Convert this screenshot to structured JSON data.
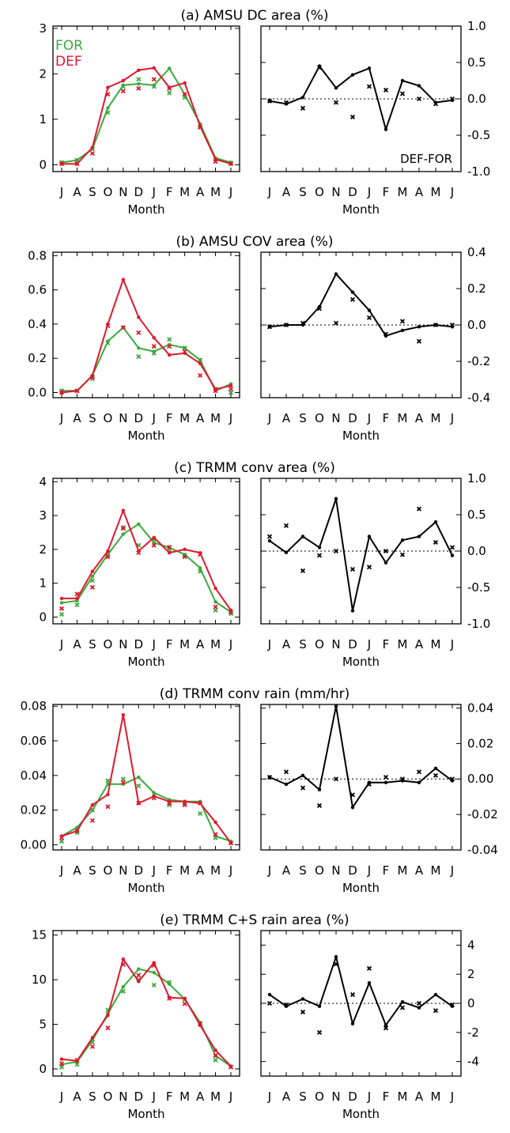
{
  "colors": {
    "FOR": "#3aaa3a",
    "DEF": "#e0182d",
    "DIFF": "#000000"
  },
  "legend": {
    "for_label": "FOR",
    "def_label": "DEF",
    "diff_label": "DEF-FOR"
  },
  "chart_data": [
    {
      "type": "line",
      "title": "(a) AMSU DC area (%)",
      "xlabel": "Month",
      "categories": [
        "J",
        "A",
        "S",
        "O",
        "N",
        "D",
        "J",
        "F",
        "M",
        "A",
        "M",
        "J"
      ],
      "left": {
        "ylim": [
          -0.15,
          3.05
        ],
        "yticks": [
          "0",
          "1",
          "2",
          "3"
        ],
        "ytick_values": [
          0,
          1,
          2,
          3
        ],
        "series": [
          {
            "name": "FOR",
            "line": [
              0.05,
              0.1,
              0.35,
              1.25,
              1.75,
              1.78,
              1.75,
              2.12,
              1.55,
              0.9,
              0.15,
              0.05
            ],
            "points": [
              0.05,
              0.1,
              0.35,
              1.15,
              1.72,
              1.88,
              1.72,
              1.58,
              1.48,
              0.85,
              0.12,
              0.04
            ]
          },
          {
            "name": "DEF",
            "line": [
              0.02,
              0.02,
              0.38,
              1.7,
              1.85,
              2.08,
              2.13,
              1.7,
              1.8,
              0.85,
              0.12,
              0.02
            ],
            "points": [
              0.02,
              0.02,
              0.25,
              1.55,
              1.62,
              1.68,
              1.88,
              1.68,
              1.55,
              0.82,
              0.07,
              0.02
            ]
          }
        ]
      },
      "right": {
        "ylim": [
          -1.0,
          1.0
        ],
        "yticks": [
          "1.0",
          "0.5",
          "0.0",
          "-0.5",
          "-1.0"
        ],
        "ytick_values": [
          1.0,
          0.5,
          0.0,
          -0.5,
          -1.0
        ],
        "series": [
          {
            "name": "DEF-FOR",
            "line": [
              -0.03,
              -0.07,
              0.02,
              0.45,
              0.15,
              0.33,
              0.42,
              -0.42,
              0.25,
              0.18,
              -0.05,
              -0.02
            ],
            "points": [
              -0.03,
              -0.05,
              -0.13,
              0.43,
              -0.05,
              -0.25,
              0.17,
              0.12,
              0.07,
              0.0,
              -0.07,
              0.0
            ]
          }
        ]
      }
    },
    {
      "type": "line",
      "title": "(b) AMSU COV area (%)",
      "xlabel": "Month",
      "categories": [
        "J",
        "A",
        "S",
        "O",
        "N",
        "D",
        "J",
        "F",
        "M",
        "A",
        "M",
        "J"
      ],
      "left": {
        "ylim": [
          -0.03,
          0.82
        ],
        "yticks": [
          "0.0",
          "0.2",
          "0.4",
          "0.6",
          "0.8"
        ],
        "ytick_values": [
          0.0,
          0.2,
          0.4,
          0.6,
          0.8
        ],
        "series": [
          {
            "name": "FOR",
            "line": [
              0.01,
              0.01,
              0.1,
              0.3,
              0.38,
              0.26,
              0.24,
              0.28,
              0.26,
              0.19,
              0.01,
              0.05
            ],
            "points": [
              0.01,
              0.01,
              0.08,
              0.29,
              0.38,
              0.21,
              0.23,
              0.31,
              0.26,
              0.19,
              0.02,
              0.0
            ]
          },
          {
            "name": "DEF",
            "line": [
              0.0,
              0.01,
              0.1,
              0.4,
              0.66,
              0.44,
              0.32,
              0.22,
              0.23,
              0.17,
              0.02,
              0.04
            ],
            "points": [
              0.0,
              0.01,
              0.09,
              0.39,
              0.38,
              0.35,
              0.27,
              0.27,
              0.24,
              0.1,
              0.01,
              0.02
            ]
          }
        ]
      },
      "right": {
        "ylim": [
          -0.4,
          0.4
        ],
        "yticks": [
          "0.4",
          "0.2",
          "0.0",
          "-0.2",
          "-0.4"
        ],
        "ytick_values": [
          0.4,
          0.2,
          0.0,
          -0.2,
          -0.4
        ],
        "series": [
          {
            "name": "DEF-FOR",
            "line": [
              -0.01,
              0.0,
              0.0,
              0.1,
              0.28,
              0.18,
              0.08,
              -0.06,
              -0.03,
              -0.01,
              0.0,
              -0.01
            ],
            "points": [
              -0.01,
              0.0,
              0.01,
              0.09,
              0.01,
              0.14,
              0.04,
              -0.05,
              0.02,
              -0.09,
              0.0,
              0.0
            ]
          }
        ]
      }
    },
    {
      "type": "line",
      "title": "(c) TRMM conv area (%)",
      "xlabel": "Month",
      "categories": [
        "J",
        "A",
        "S",
        "O",
        "N",
        "D",
        "J",
        "F",
        "M",
        "A",
        "M",
        "J"
      ],
      "left": {
        "ylim": [
          -0.2,
          4.1
        ],
        "yticks": [
          "0",
          "1",
          "2",
          "3",
          "4"
        ],
        "ytick_values": [
          0,
          1,
          2,
          3,
          4
        ],
        "series": [
          {
            "name": "FOR",
            "line": [
              0.42,
              0.48,
              1.2,
              1.85,
              2.45,
              2.75,
              2.2,
              2.05,
              1.85,
              1.45,
              0.45,
              0.15
            ],
            "points": [
              0.08,
              0.36,
              1.08,
              1.83,
              2.65,
              2.12,
              2.3,
              2.0,
              1.82,
              1.35,
              0.2,
              0.1
            ]
          },
          {
            "name": "DEF",
            "line": [
              0.55,
              0.55,
              1.35,
              1.95,
              3.15,
              1.95,
              2.35,
              1.9,
              2.0,
              1.9,
              0.85,
              0.2
            ],
            "points": [
              0.25,
              0.68,
              0.88,
              1.78,
              2.62,
              1.9,
              2.12,
              2.07,
              1.78,
              1.85,
              0.3,
              0.15
            ]
          }
        ]
      },
      "right": {
        "ylim": [
          -1.0,
          1.0
        ],
        "yticks": [
          "1.0",
          "0.5",
          "0.0",
          "-0.5",
          "-1.0"
        ],
        "ytick_values": [
          1.0,
          0.5,
          0.0,
          -0.5,
          -1.0
        ],
        "series": [
          {
            "name": "DEF-FOR",
            "line": [
              0.14,
              -0.02,
              0.2,
              0.05,
              0.72,
              -0.82,
              0.2,
              -0.16,
              0.15,
              0.2,
              0.4,
              -0.06
            ],
            "points": [
              0.2,
              0.35,
              -0.27,
              -0.06,
              0.0,
              -0.25,
              -0.22,
              0.0,
              -0.05,
              0.58,
              0.12,
              0.05
            ]
          }
        ]
      }
    },
    {
      "type": "line",
      "title": "(d) TRMM conv rain (mm/hr)",
      "xlabel": "Month",
      "categories": [
        "J",
        "A",
        "S",
        "O",
        "N",
        "D",
        "J",
        "F",
        "M",
        "A",
        "M",
        "J"
      ],
      "left": {
        "ylim": [
          -0.003,
          0.081
        ],
        "yticks": [
          "0.00",
          "0.02",
          "0.04",
          "0.06",
          "0.08"
        ],
        "ytick_values": [
          0.0,
          0.02,
          0.04,
          0.06,
          0.08
        ],
        "series": [
          {
            "name": "FOR",
            "line": [
              0.005,
              0.01,
              0.02,
              0.035,
              0.035,
              0.039,
              0.03,
              0.026,
              0.025,
              0.025,
              0.005,
              0.002
            ],
            "points": [
              0.002,
              0.007,
              0.02,
              0.037,
              0.038,
              0.034,
              0.029,
              0.023,
              0.024,
              0.018,
              0.004,
              0.001
            ]
          },
          {
            "name": "DEF",
            "line": [
              0.005,
              0.008,
              0.023,
              0.029,
              0.075,
              0.024,
              0.028,
              0.025,
              0.025,
              0.024,
              0.013,
              0.001
            ],
            "points": [
              0.004,
              0.008,
              0.014,
              0.022,
              0.036,
              0.024,
              0.027,
              0.024,
              0.023,
              0.024,
              0.006,
              0.001
            ]
          }
        ]
      },
      "right": {
        "ylim": [
          -0.04,
          0.042
        ],
        "yticks": [
          "0.04",
          "0.02",
          "0.00",
          "-0.02",
          "-0.04"
        ],
        "ytick_values": [
          0.04,
          0.02,
          0.0,
          -0.02,
          -0.04
        ],
        "series": [
          {
            "name": "DEF-FOR",
            "line": [
              0.001,
              -0.003,
              0.002,
              -0.006,
              0.041,
              -0.016,
              -0.002,
              -0.002,
              -0.001,
              -0.002,
              0.006,
              -0.001
            ],
            "points": [
              0.001,
              0.004,
              -0.005,
              -0.015,
              0.0,
              -0.009,
              -0.003,
              0.001,
              0.0,
              0.004,
              0.002,
              0.0
            ]
          }
        ]
      }
    },
    {
      "type": "line",
      "title": "(e) TRMM C+S rain area (%)",
      "xlabel": "Month",
      "categories": [
        "J",
        "A",
        "S",
        "O",
        "N",
        "D",
        "J",
        "F",
        "M",
        "A",
        "M",
        "J"
      ],
      "left": {
        "ylim": [
          -0.8,
          15.5
        ],
        "yticks": [
          "0",
          "5",
          "10",
          "15"
        ],
        "ytick_values": [
          0,
          5,
          10,
          15
        ],
        "series": [
          {
            "name": "FOR",
            "line": [
              0.5,
              0.8,
              3.2,
              6.2,
              9.2,
              11.2,
              10.8,
              9.5,
              7.8,
              5.2,
              1.5,
              0.3
            ],
            "points": [
              0.2,
              0.5,
              3.0,
              6.6,
              8.7,
              10.0,
              9.4,
              9.7,
              7.8,
              5.0,
              1.0,
              0.2
            ]
          },
          {
            "name": "DEF",
            "line": [
              1.1,
              0.9,
              3.5,
              6.0,
              12.3,
              9.8,
              11.9,
              8.0,
              7.9,
              4.9,
              2.1,
              0.3
            ],
            "points": [
              0.6,
              1.0,
              2.5,
              4.6,
              11.7,
              10.5,
              11.6,
              7.9,
              7.3,
              5.1,
              1.5,
              0.2
            ]
          }
        ]
      },
      "right": {
        "ylim": [
          -5.0,
          5.0
        ],
        "yticks": [
          "4",
          "2",
          "0",
          "-2",
          "-4"
        ],
        "ytick_values": [
          4,
          2,
          0,
          -2,
          -4
        ],
        "series": [
          {
            "name": "DEF-FOR",
            "line": [
              0.6,
              -0.2,
              0.3,
              -0.2,
              3.2,
              -1.4,
              1.4,
              -1.5,
              0.1,
              -0.3,
              0.6,
              -0.2
            ],
            "points": [
              0.0,
              -0.1,
              -0.6,
              -2.0,
              2.7,
              0.6,
              2.4,
              -1.7,
              -0.3,
              0.0,
              -0.5,
              -0.1
            ]
          }
        ]
      }
    }
  ]
}
